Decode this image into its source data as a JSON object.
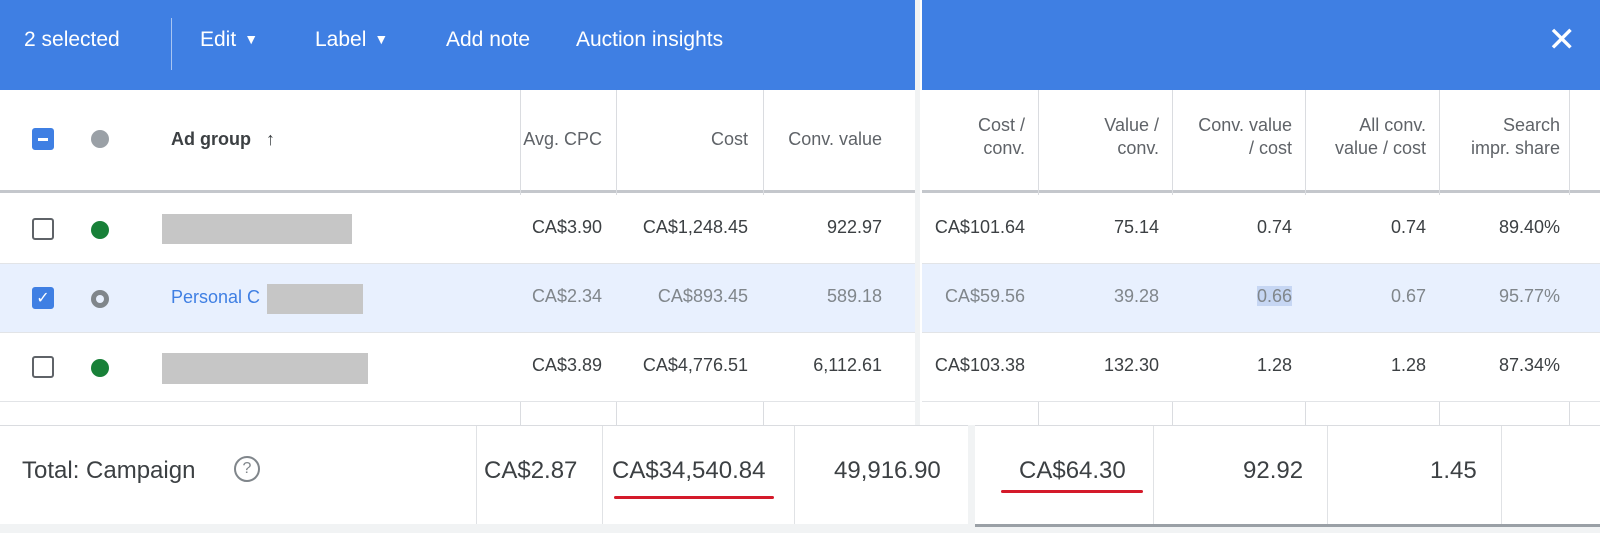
{
  "toolbar": {
    "selected_label": "2 selected",
    "edit_label": "Edit",
    "label_label": "Label",
    "add_note_label": "Add note",
    "auction_insights_label": "Auction insights",
    "close_glyph": "✕"
  },
  "columns": {
    "ad_group": "Ad group",
    "sort_glyph": "↑",
    "avg_cpc": "Avg. CPC",
    "cost": "Cost",
    "conv_value": "Conv. value",
    "cost_conv_1": "Cost /",
    "cost_conv_2": "conv.",
    "value_conv_1": "Value /",
    "value_conv_2": "conv.",
    "conv_value_cost_1": "Conv. value",
    "conv_value_cost_2": "/ cost",
    "all_conv_1": "All conv.",
    "all_conv_2": "value / cost",
    "search_impr_1": "Search",
    "search_impr_2": "impr. share"
  },
  "rows": [
    {
      "name": "",
      "checked": false,
      "status": "enabled",
      "avg_cpc": "CA$3.90",
      "cost": "CA$1,248.45",
      "conv_value": "922.97",
      "cost_conv": "CA$101.64",
      "value_conv": "75.14",
      "conv_value_cost": "0.74",
      "all_conv_value_cost": "0.74",
      "search_impr_share": "89.40%"
    },
    {
      "name": "Personal C",
      "checked": true,
      "status": "paused",
      "avg_cpc": "CA$2.34",
      "cost": "CA$893.45",
      "conv_value": "589.18",
      "cost_conv": "CA$59.56",
      "value_conv": "39.28",
      "conv_value_cost": "0.66",
      "all_conv_value_cost": "0.67",
      "search_impr_share": "95.77%"
    },
    {
      "name": "",
      "checked": false,
      "status": "enabled",
      "avg_cpc": "CA$3.89",
      "cost": "CA$4,776.51",
      "conv_value": "6,112.61",
      "cost_conv": "CA$103.38",
      "value_conv": "132.30",
      "conv_value_cost": "1.28",
      "all_conv_value_cost": "1.28",
      "search_impr_share": "87.34%"
    }
  ],
  "total": {
    "label": "Total: Campaign",
    "help_glyph": "?",
    "avg_cpc": "CA$2.87",
    "cost": "CA$34,540.84",
    "conv_value": "49,916.90",
    "cost_conv": "CA$64.30",
    "value_conv": "92.92",
    "conv_value_cost": "1.45"
  },
  "colors": {
    "toolbar": "#3f7fe3",
    "selected_row": "#e8f0fe",
    "status_enabled": "#188038",
    "underline_annotation": "#d41a2a"
  }
}
